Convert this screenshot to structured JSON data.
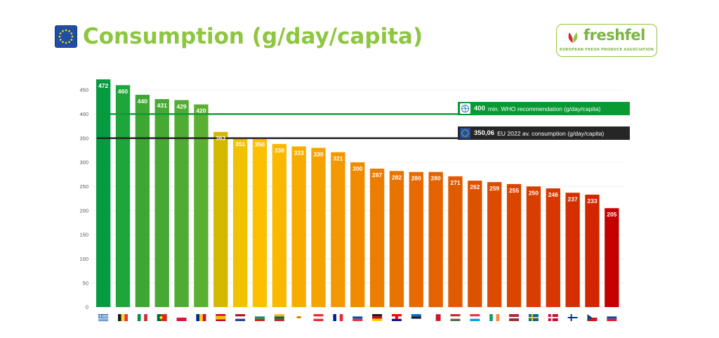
{
  "header": {
    "title": "Consumption (g/day/capita)",
    "flag_icon": "eu-flag-icon"
  },
  "logo": {
    "name": "freshfel",
    "tagline": "EUROPEAN FRESH PRODUCE ASSOCIATION"
  },
  "references": {
    "who": {
      "value": "400",
      "text": "min. WHO recommendation  (g/day/capita)",
      "icon": "who-icon",
      "color": "#0a9a34"
    },
    "eu": {
      "value": "350,06",
      "text": "EU 2022 av. consumption (g/day/capita)",
      "icon": "eu-flag-icon",
      "color": "#262626"
    }
  },
  "chart_data": {
    "type": "bar",
    "title": "Consumption (g/day/capita)",
    "xlabel": "",
    "ylabel": "",
    "ylim": [
      0,
      450
    ],
    "yticks": [
      0,
      50,
      100,
      150,
      200,
      250,
      300,
      350,
      400,
      450
    ],
    "grid": true,
    "categories": [
      "Greece",
      "Belgium",
      "Italy",
      "Portugal",
      "Poland",
      "Romania",
      "Spain",
      "Netherlands",
      "Bulgaria",
      "Lithuania",
      "Cyprus",
      "Austria",
      "France",
      "Slovenia",
      "Germany",
      "Croatia",
      "Estonia",
      "Malta",
      "Hungary",
      "Luxembourg",
      "Ireland",
      "Latvia",
      "Sweden",
      "Denmark",
      "Finland",
      "Czechia",
      "Slovakia"
    ],
    "values": [
      472,
      460,
      440,
      431,
      429,
      420,
      363,
      351,
      350,
      338,
      333,
      330,
      321,
      300,
      287,
      282,
      280,
      280,
      271,
      262,
      259,
      255,
      250,
      246,
      237,
      233,
      205
    ],
    "labels": [
      "472",
      "460",
      "440",
      "431",
      "429",
      "420",
      "363",
      "351",
      "350",
      "338",
      "333",
      "330",
      "321",
      "300",
      "287",
      "282",
      "280",
      "280",
      "271",
      "262",
      "259",
      "255",
      "250",
      "246",
      "237",
      "233",
      "205"
    ],
    "bar_colors": [
      "#079b41",
      "#1ea53b",
      "#3ea733",
      "#47a934",
      "#4fab33",
      "#5ab031",
      "#d4b800",
      "#f2c200",
      "#fbc100",
      "#fbb800",
      "#f7ad00",
      "#f5a300",
      "#f39800",
      "#f08a00",
      "#ec7d00",
      "#e97300",
      "#e66a00",
      "#e46200",
      "#e05a00",
      "#dd5200",
      "#dc4c00",
      "#da4500",
      "#d83e00",
      "#d73700",
      "#d52f00",
      "#d22600",
      "#c50000"
    ],
    "reference_lines": [
      {
        "value": 400,
        "color": "#0a9a34"
      },
      {
        "value": 350.06,
        "color": "#262626"
      }
    ]
  }
}
